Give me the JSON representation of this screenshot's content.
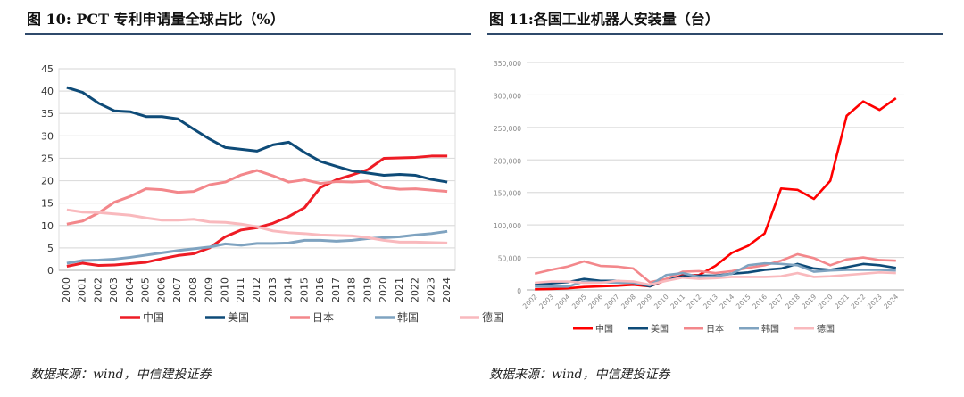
{
  "titles": {
    "left": "图 10: PCT 专利申请量全球占比（%）",
    "right": "图 11:各国工业机器人安装量（台）"
  },
  "sources": {
    "left": "数据来源：wind，中信建投证券",
    "right": "数据来源：wind，中信建投证券"
  },
  "chart_data": [
    {
      "type": "line",
      "title": "图 10: PCT 专利申请量全球占比（%）",
      "ylim": [
        0,
        45
      ],
      "yticks": [
        0,
        5,
        10,
        15,
        20,
        25,
        30,
        35,
        40,
        45
      ],
      "grid": true,
      "legend": "bottom",
      "x": [
        "2000",
        "2001",
        "2002",
        "2003",
        "2004",
        "2005",
        "2006",
        "2007",
        "2008",
        "2009",
        "2010",
        "2011",
        "2012",
        "2013",
        "2014",
        "2015",
        "2016",
        "2017",
        "2018",
        "2019",
        "2020",
        "2021",
        "2022",
        "2023",
        "2024"
      ],
      "series": [
        {
          "name": "中国",
          "color": "#ee1c25",
          "values": [
            0.9,
            1.6,
            1.1,
            1.2,
            1.5,
            1.8,
            2.6,
            3.3,
            3.7,
            5,
            7.5,
            9,
            9.5,
            10.5,
            12,
            14,
            18.5,
            20.2,
            21.3,
            22.5,
            25,
            25.1,
            25.2,
            25.5,
            25.5
          ]
        },
        {
          "name": "美国",
          "color": "#0e4b78",
          "values": [
            40.8,
            39.7,
            37.3,
            35.6,
            35.4,
            34.3,
            34.3,
            33.8,
            31.5,
            29.3,
            27.4,
            27,
            26.6,
            28,
            28.6,
            26.3,
            24.3,
            23.2,
            22.2,
            21.7,
            21.2,
            21.4,
            21.2,
            20.3,
            19.7
          ]
        },
        {
          "name": "日本",
          "color": "#f3878b",
          "values": [
            10.3,
            11,
            12.8,
            15.2,
            16.5,
            18.2,
            18,
            17.4,
            17.6,
            19.1,
            19.7,
            21.3,
            22.3,
            21.1,
            19.7,
            20.2,
            19.4,
            19.8,
            19.7,
            19.9,
            18.5,
            18.1,
            18.2,
            17.9,
            17.6
          ]
        },
        {
          "name": "韩国",
          "color": "#7fa3c0",
          "values": [
            1.6,
            2.2,
            2.3,
            2.5,
            2.9,
            3.4,
            3.9,
            4.4,
            4.8,
            5.2,
            5.9,
            5.6,
            6,
            6,
            6.1,
            6.7,
            6.7,
            6.5,
            6.7,
            7.1,
            7.3,
            7.5,
            7.9,
            8.2,
            8.7
          ]
        },
        {
          "name": "德国",
          "color": "#f9b9bd",
          "values": [
            13.5,
            13,
            12.9,
            12.6,
            12.3,
            11.7,
            11.2,
            11.2,
            11.4,
            10.8,
            10.7,
            10.3,
            9.7,
            8.8,
            8.4,
            8.2,
            7.9,
            7.8,
            7.7,
            7.3,
            6.7,
            6.3,
            6.3,
            6.2,
            6.1
          ]
        }
      ]
    },
    {
      "type": "line",
      "title": "图 11:各国工业机器人安装量（台）",
      "ylim": [
        0,
        350000
      ],
      "yticks": [
        "0",
        "50,000",
        "100,000",
        "150,000",
        "200,000",
        "250,000",
        "300,000",
        "350,000"
      ],
      "grid": true,
      "legend": "bottom",
      "x": [
        "2002",
        "2003",
        "2004",
        "2005",
        "2006",
        "2007",
        "2008",
        "2009",
        "2010",
        "2011",
        "2012",
        "2013",
        "2014",
        "2015",
        "2016",
        "2017",
        "2018",
        "2019",
        "2020",
        "2021",
        "2022",
        "2023",
        "2024"
      ],
      "series": [
        {
          "name": "中国",
          "color": "#ff0000",
          "values": [
            1000,
            1500,
            2500,
            4500,
            5500,
            6500,
            8000,
            5500,
            15000,
            22500,
            23000,
            37000,
            57000,
            68000,
            87000,
            156000,
            154000,
            140000,
            168000,
            268000,
            290000,
            277000,
            295000
          ]
        },
        {
          "name": "美国",
          "color": "#0e4b78",
          "values": [
            8000,
            10000,
            12000,
            17000,
            14000,
            14000,
            11000,
            5500,
            16000,
            21000,
            22000,
            22000,
            25000,
            27000,
            31000,
            33000,
            40000,
            33000,
            31000,
            35000,
            40000,
            38000,
            34000
          ]
        },
        {
          "name": "日本",
          "color": "#f3878b",
          "values": [
            25000,
            31000,
            36000,
            44000,
            37000,
            36000,
            33000,
            12000,
            17000,
            28000,
            29000,
            26000,
            29000,
            34000,
            38000,
            45000,
            55000,
            49000,
            38000,
            47000,
            50000,
            46000,
            45000
          ]
        },
        {
          "name": "韩国",
          "color": "#7fa3c0",
          "values": [
            5000,
            5000,
            5000,
            13000,
            12000,
            11000,
            11000,
            7000,
            23000,
            26000,
            20000,
            21000,
            25000,
            38000,
            41000,
            40000,
            38000,
            28000,
            30000,
            31000,
            31000,
            31000,
            30000
          ]
        },
        {
          "name": "德国",
          "color": "#f9b9bd",
          "values": [
            11000,
            13000,
            13000,
            11000,
            11000,
            14000,
            13000,
            8000,
            14000,
            19000,
            17000,
            18000,
            20000,
            20000,
            20000,
            21000,
            26000,
            20000,
            21000,
            23000,
            25000,
            27000,
            26000
          ]
        }
      ]
    }
  ]
}
